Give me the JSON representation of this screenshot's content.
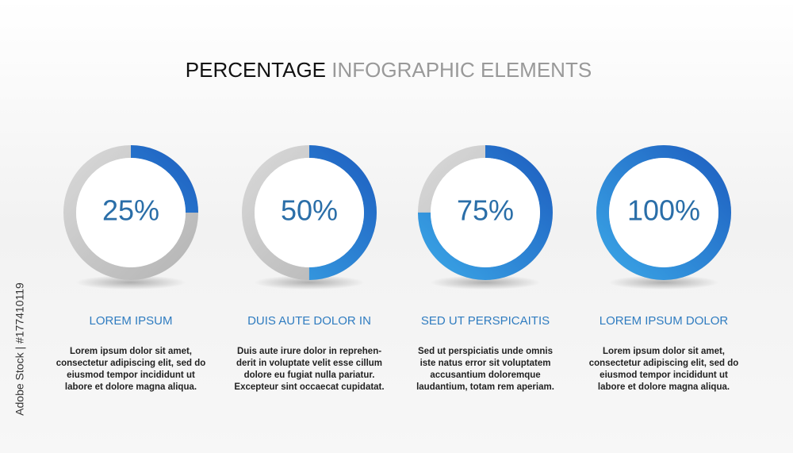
{
  "title_dark": "PERCENTAGE",
  "title_light": "INFOGRAPHIC ELEMENTS",
  "watermark": "Adobe Stock | #177410119",
  "items": [
    {
      "value": 25,
      "value_label": "25%",
      "heading": "LOREM IPSUM",
      "text_lines": [
        "Lorem ipsum dolor sit amet,",
        "consectetur adipiscing elit, sed do",
        "eiusmod tempor incididunt ut",
        "labore et dolore magna aliqua."
      ]
    },
    {
      "value": 50,
      "value_label": "50%",
      "heading": "DUIS AUTE DOLOR IN",
      "text_lines": [
        "Duis aute irure dolor in reprehen-",
        "derit in voluptate velit esse cillum",
        "dolore eu fugiat nulla pariatur.",
        "Excepteur sint occaecat cupidatat."
      ]
    },
    {
      "value": 75,
      "value_label": "75%",
      "heading": "SED UT PERSPICAITIS",
      "text_lines": [
        "Sed ut perspiciatis unde omnis",
        "iste natus error sit voluptatem",
        "accusantium doloremque",
        "laudantium, totam rem aperiam."
      ]
    },
    {
      "value": 100,
      "value_label": "100%",
      "heading": "LOREM IPSUM DOLOR",
      "text_lines": [
        "Lorem ipsum dolor sit amet,",
        "consectetur adipiscing elit, sed do",
        "eiusmod tempor incididunt ut",
        "labore et dolore magna aliqua."
      ]
    }
  ]
}
